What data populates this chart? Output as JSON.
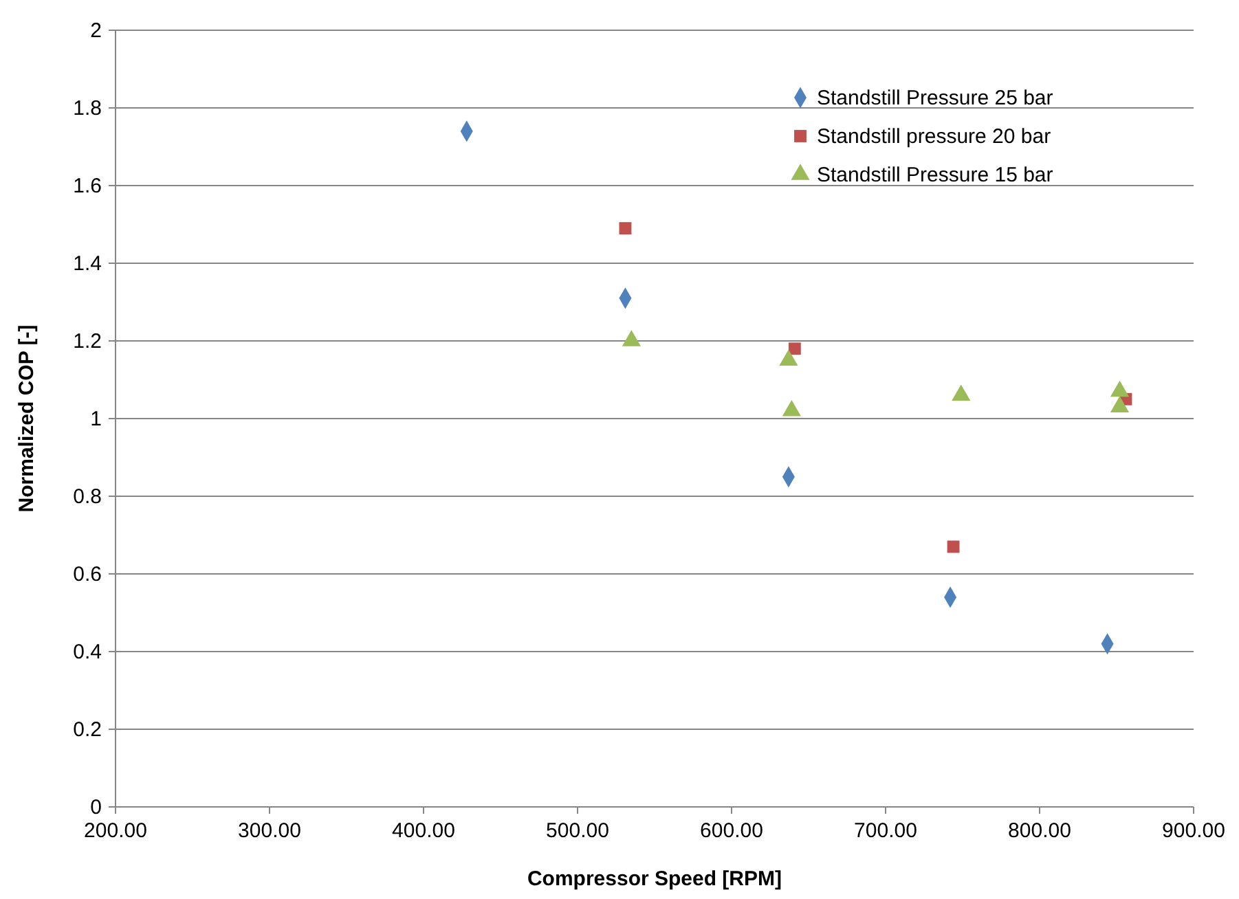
{
  "chart_data": {
    "type": "scatter",
    "xlabel": "Compressor Speed [RPM]",
    "ylabel": "Normalized COP [-]",
    "xlim": [
      200,
      900
    ],
    "xticks": [
      {
        "value": 200,
        "label": "200.00"
      },
      {
        "value": 300,
        "label": "300.00"
      },
      {
        "value": 400,
        "label": "400.00"
      },
      {
        "value": 500,
        "label": "500.00"
      },
      {
        "value": 600,
        "label": "600.00"
      },
      {
        "value": 700,
        "label": "700.00"
      },
      {
        "value": 800,
        "label": "800.00"
      },
      {
        "value": 900,
        "label": "900.00"
      }
    ],
    "ylim": [
      0,
      2
    ],
    "yticks": [
      0,
      0.2,
      0.4,
      0.6,
      0.8,
      1,
      1.2,
      1.4,
      1.6,
      1.8,
      2
    ],
    "grid": "y",
    "legend": "top right",
    "series": [
      {
        "name": "Standstill Pressure 25 bar",
        "color": "#4f81bd",
        "marker": "diamond",
        "x": [
          428,
          531,
          637,
          742,
          844
        ],
        "values": [
          1.74,
          1.31,
          0.85,
          0.54,
          0.42
        ]
      },
      {
        "name": "Standstill pressure 20 bar",
        "color": "#c0504d",
        "marker": "square",
        "x": [
          531,
          641,
          744,
          856
        ],
        "values": [
          1.49,
          1.18,
          0.67,
          1.05
        ]
      },
      {
        "name": "Standstill Pressure 15 bar",
        "color": "#9bbb59",
        "marker": "triangle",
        "x": [
          535,
          637,
          639,
          749,
          852,
          852
        ],
        "values": [
          1.2,
          1.15,
          1.02,
          1.06,
          1.07,
          1.03
        ]
      }
    ]
  }
}
